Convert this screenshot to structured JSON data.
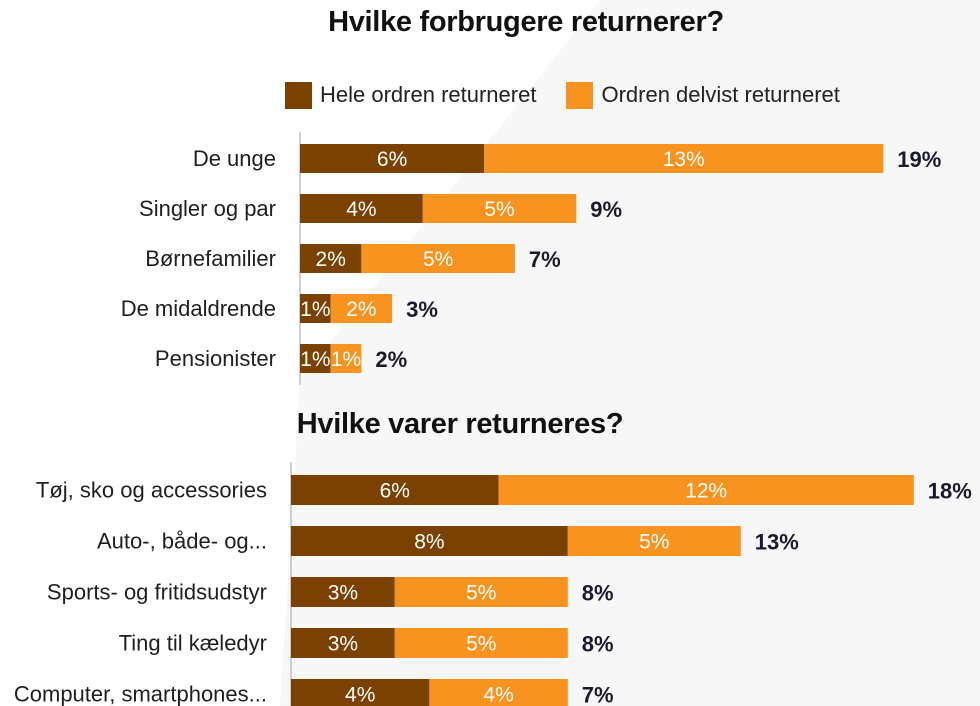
{
  "colors": {
    "whole": "#7a4100",
    "partial": "#f7931e",
    "axis": "#bfbfbf"
  },
  "legend": {
    "whole": "Hele ordren returneret",
    "partial": "Ordren delvist returneret"
  },
  "chart_data": [
    {
      "type": "bar",
      "orientation": "horizontal",
      "stacked": true,
      "title": "Hvilke forbrugere returnerer?",
      "categories": [
        "De unge",
        "Singler og par",
        "Børnefamilier",
        "De midaldrende",
        "Pensionister"
      ],
      "series": [
        {
          "name": "Hele ordren returneret",
          "values": [
            6,
            4,
            2,
            1,
            1
          ],
          "labels": [
            "6%",
            "4%",
            "2%",
            "1%",
            "1%"
          ]
        },
        {
          "name": "Ordren delvist returneret",
          "values": [
            13,
            5,
            5,
            2,
            1
          ],
          "labels": [
            "13%",
            "5%",
            "5%",
            "2%",
            "1%"
          ]
        }
      ],
      "totals": [
        "19%",
        "9%",
        "7%",
        "3%",
        "2%"
      ],
      "unit": "%",
      "legend": "top"
    },
    {
      "type": "bar",
      "orientation": "horizontal",
      "stacked": true,
      "title": "Hvilke varer returneres?",
      "categories": [
        "Tøj, sko og accessories",
        "Auto-, både- og...",
        "Sports- og fritidsudstyr",
        "Ting til kæledyr",
        "Computer, smartphones..."
      ],
      "series": [
        {
          "name": "Hele ordren returneret",
          "values": [
            6,
            8,
            3,
            3,
            4
          ],
          "labels": [
            "6%",
            "8%",
            "3%",
            "3%",
            "4%"
          ]
        },
        {
          "name": "Ordren delvist returneret",
          "values": [
            12,
            5,
            5,
            5,
            4
          ],
          "labels": [
            "12%",
            "5%",
            "5%",
            "5%",
            "4%"
          ]
        }
      ],
      "totals": [
        "18%",
        "13%",
        "8%",
        "8%",
        "7%"
      ],
      "unit": "%"
    }
  ]
}
